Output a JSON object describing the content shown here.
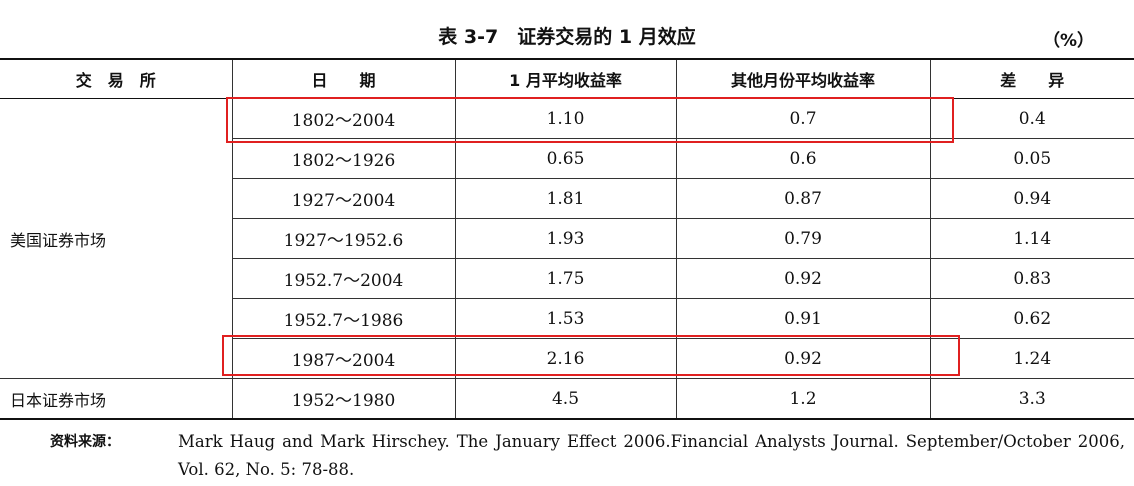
{
  "title": "表 3-7　证券交易的 1 月效应",
  "unit": "（%）",
  "table": {
    "header": [
      "交　易　所",
      "日　　期",
      "1 月平均收益率",
      "其他月份平均收益率",
      "差　　异"
    ],
    "groups": [
      {
        "exchange": "美国证券市场",
        "rows": [
          [
            "1802～2004",
            "1.10",
            "0.7",
            "0.4"
          ],
          [
            "1802～1926",
            "0.65",
            "0.6",
            "0.05"
          ],
          [
            "1927～2004",
            "1.81",
            "0.87",
            "0.94"
          ],
          [
            "1927～1952.6",
            "1.93",
            "0.79",
            "1.14"
          ],
          [
            "1952.7～2004",
            "1.75",
            "0.92",
            "0.83"
          ],
          [
            "1952.7～1986",
            "1.53",
            "0.91",
            "0.62"
          ],
          [
            "1987～2004",
            "2.16",
            "0.92",
            "1.24"
          ]
        ]
      },
      {
        "exchange": "日本证券市场",
        "rows": [
          [
            "1952～1980",
            "4.5",
            "1.2",
            "3.3"
          ]
        ]
      }
    ]
  },
  "source": {
    "label": "资料来源：",
    "text": "Mark Haug and Mark Hirschey. The January Effect 2006.Financial Analysts Journal. September/October 2006, Vol. 62, No. 5: 78-88."
  }
}
